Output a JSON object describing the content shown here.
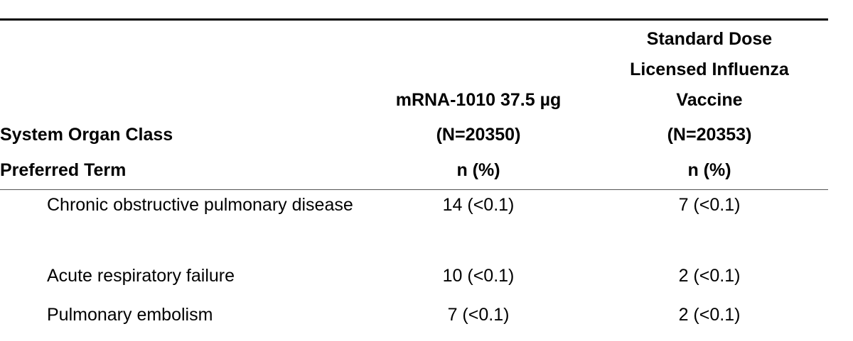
{
  "table": {
    "header": [
      [
        "System Organ Class",
        "Preferred Term"
      ],
      [
        "mRNA-1010 37.5 µg",
        "(N=20350)",
        "n (%)"
      ],
      [
        "Standard Dose",
        "Licensed Influenza",
        "Vaccine",
        "(N=20353)",
        "n (%)"
      ]
    ],
    "rows": [
      [
        "Chronic obstructive pulmonary disease",
        "14 (<0.1)",
        "7 (<0.1)"
      ],
      [
        "Acute respiratory failure",
        "10 (<0.1)",
        "2 (<0.1)"
      ],
      [
        "Pulmonary embolism",
        "7 (<0.1)",
        "2 (<0.1)"
      ]
    ]
  }
}
